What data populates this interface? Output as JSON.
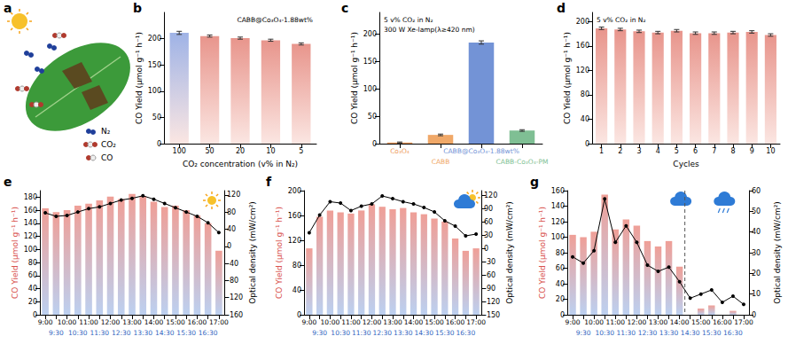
{
  "illustration": {
    "label": "a",
    "species": [
      "N₂",
      "CO₂",
      "CO"
    ]
  },
  "chart_data": [
    {
      "type": "bar",
      "title": "b",
      "annotations": [
        "CABB@Co₃O₄-1.88wt%"
      ],
      "xlabel": "CO₂ concentration (v% in N₂)",
      "ylabel": "CO Yield (μmol g⁻¹ h⁻¹)",
      "categories": [
        "100",
        "50",
        "20",
        "10",
        "5"
      ],
      "values": [
        211,
        205,
        201,
        197,
        190
      ],
      "errors": [
        3,
        2,
        2,
        2,
        2
      ],
      "colors": [
        "#9fb3e6",
        "#e8958c",
        "#e8958c",
        "#e8958c",
        "#e8958c"
      ],
      "ylim": [
        0,
        250
      ],
      "yticks": [
        0,
        50,
        100,
        150,
        200
      ],
      "grid": false
    },
    {
      "type": "bar",
      "title": "c",
      "annotations": [
        "5 v% CO₂ in N₂",
        "300 W Xe-lamp(λ≥420 nm)"
      ],
      "ylabel": "CO Yield (μmol g⁻¹ h⁻¹)",
      "categories": [
        "Co₃O₄",
        "CABB",
        "CABB@Co₃O₄-1.88wt%",
        "CABB-Co₃O₄-PM"
      ],
      "values": [
        2,
        16,
        185,
        24
      ],
      "errors": [
        1,
        1.5,
        3,
        1.5
      ],
      "colors": [
        "#ee9a5c",
        "#f0a868",
        "#7393d6",
        "#7fbf94"
      ],
      "ylim": [
        0,
        240
      ],
      "yticks": [
        0,
        50,
        100,
        150,
        200
      ],
      "grid": false
    },
    {
      "type": "bar",
      "title": "d",
      "annotations": [
        "5 v% CO₂ in N₂"
      ],
      "xlabel": "Cycles",
      "ylabel": "CO Yield (μmol g⁻¹ h⁻¹)",
      "categories": [
        "1",
        "2",
        "3",
        "4",
        "5",
        "6",
        "7",
        "8",
        "9",
        "10"
      ],
      "values": [
        189,
        187,
        184,
        182,
        185,
        181,
        181,
        182,
        183,
        178
      ],
      "errors": [
        2,
        2,
        2,
        2,
        2,
        2,
        2,
        2,
        2,
        2
      ],
      "color": "#e8958c",
      "ylim": [
        0,
        215
      ],
      "yticks": [
        0,
        40,
        80,
        120,
        160,
        200
      ],
      "grid": false
    },
    {
      "type": "bar",
      "title": "e",
      "ylabel": "CO Yield (μmol g⁻¹ h⁻¹)",
      "y2label": "Optical density (mW/cm²)",
      "categories": [
        "9:00",
        "9:30",
        "10:00",
        "10:30",
        "11:00",
        "11:30",
        "12:00",
        "12:30",
        "13:00",
        "13:30",
        "14:00",
        "14:30",
        "15:00",
        "15:30",
        "16:00",
        "16:30",
        "17:00"
      ],
      "series": [
        {
          "type": "bar",
          "color": "#ef9f97",
          "values": [
            163,
            157,
            160,
            167,
            170,
            175,
            181,
            177,
            185,
            182,
            173,
            165,
            167,
            160,
            152,
            140,
            98
          ]
        },
        {
          "type": "line",
          "axis": "y2",
          "color": "#000000",
          "marker": "circle",
          "line_style": "solid",
          "values": [
            78,
            70,
            72,
            80,
            88,
            92,
            100,
            108,
            112,
            118,
            110,
            100,
            90,
            80,
            70,
            55,
            32
          ]
        }
      ],
      "ylim": [
        0,
        190
      ],
      "yticks": [
        0,
        20,
        40,
        60,
        80,
        100,
        120,
        140,
        160,
        180
      ],
      "y2lim": [
        -160,
        130
      ],
      "y2ticks": [
        -160,
        -120,
        -80,
        -40,
        0,
        40,
        80,
        120
      ],
      "grid": false
    },
    {
      "type": "bar",
      "title": "f",
      "ylabel": "CO Yield (μmol g⁻¹ h⁻¹)",
      "y2label": "Optical density (mW/cm²)",
      "categories": [
        "9:00",
        "9:30",
        "10:00",
        "10:30",
        "11:00",
        "11:30",
        "12:00",
        "12:30",
        "13:00",
        "13:30",
        "14:00",
        "14:30",
        "15:00",
        "15:30",
        "16:00",
        "16:30",
        "17:00"
      ],
      "series": [
        {
          "type": "bar",
          "color": "#ef9f97",
          "values": [
            107,
            158,
            168,
            165,
            163,
            168,
            178,
            174,
            170,
            172,
            165,
            162,
            155,
            150,
            123,
            103,
            107
          ]
        },
        {
          "type": "line",
          "axis": "y2",
          "color": "#000000",
          "marker": "circle",
          "line_style": "solid",
          "values": [
            35,
            75,
            105,
            102,
            85,
            95,
            100,
            118,
            112,
            105,
            100,
            92,
            82,
            62,
            50,
            28,
            32
          ]
        }
      ],
      "ylim": [
        0,
        200
      ],
      "yticks": [
        0,
        40,
        80,
        120,
        160,
        200
      ],
      "y2lim": [
        -150,
        130
      ],
      "y2ticks": [
        -150,
        -120,
        -90,
        -60,
        -30,
        0,
        30,
        60,
        90,
        120
      ],
      "grid": false
    },
    {
      "type": "bar",
      "title": "g",
      "ylabel": "CO Yield (μmol g⁻¹ h⁻¹)",
      "y2label": "Optical density (mW/cm²)",
      "categories": [
        "9:00",
        "9:30",
        "10:00",
        "10:30",
        "11:00",
        "11:30",
        "12:00",
        "12:30",
        "13:00",
        "13:30",
        "14:00",
        "14:30",
        "15:00",
        "15:30",
        "16:00",
        "16:30",
        "17:00"
      ],
      "divider": "14:00",
      "series": [
        {
          "type": "bar",
          "color": "#ef9f97",
          "values": [
            103,
            100,
            107,
            155,
            110,
            123,
            115,
            95,
            88,
            95,
            62,
            0,
            8,
            12,
            0,
            5,
            0
          ]
        },
        {
          "type": "line",
          "axis": "y2",
          "color": "#000000",
          "marker": "circle",
          "line_style": "solid",
          "values": [
            28,
            25,
            31,
            56,
            35,
            43,
            35,
            24,
            21,
            23,
            16,
            8,
            10,
            12,
            6,
            9,
            5
          ]
        }
      ],
      "ylim": [
        0,
        160
      ],
      "yticks": [
        0,
        20,
        40,
        60,
        80,
        100,
        120,
        140,
        160
      ],
      "y2lim": [
        0,
        60
      ],
      "y2ticks": [
        0,
        10,
        20,
        30,
        40,
        50,
        60
      ],
      "grid": false
    }
  ]
}
